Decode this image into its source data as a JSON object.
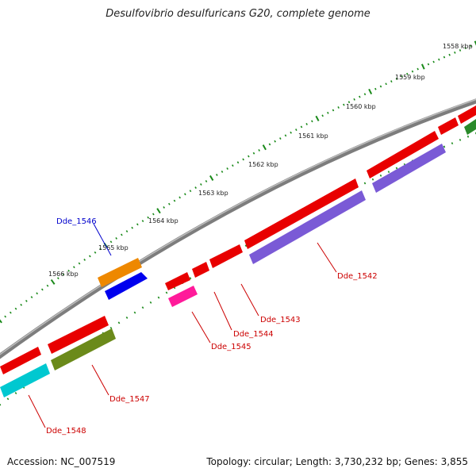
{
  "title": "Desulfovibrio desulfuricans G20, complete genome",
  "footer": {
    "accession": "Accession: NC_007519",
    "topology": "Topology: circular; Length: 3,730,232 bp; Genes: 3,855"
  },
  "colors": {
    "backbone": "#8a8a8a",
    "tick": "#1a8a1a",
    "red_label": "#cc0000",
    "blue_label": "#0000cc"
  },
  "scale_labels": [
    "1558 kbp",
    "1559 kbp",
    "1560 kbp",
    "1561 kbp",
    "1562 kbp",
    "1563 kbp",
    "1564 kbp",
    "1565 kbp",
    "1566 kbp"
  ],
  "gene_labels": [
    {
      "name": "Dde_1542",
      "color": "#cc0000"
    },
    {
      "name": "Dde_1543",
      "color": "#cc0000"
    },
    {
      "name": "Dde_1544",
      "color": "#cc0000"
    },
    {
      "name": "Dde_1545",
      "color": "#cc0000"
    },
    {
      "name": "Dde_1546",
      "color": "#0000cc"
    },
    {
      "name": "Dde_1547",
      "color": "#cc0000"
    },
    {
      "name": "Dde_1548",
      "color": "#cc0000"
    }
  ]
}
